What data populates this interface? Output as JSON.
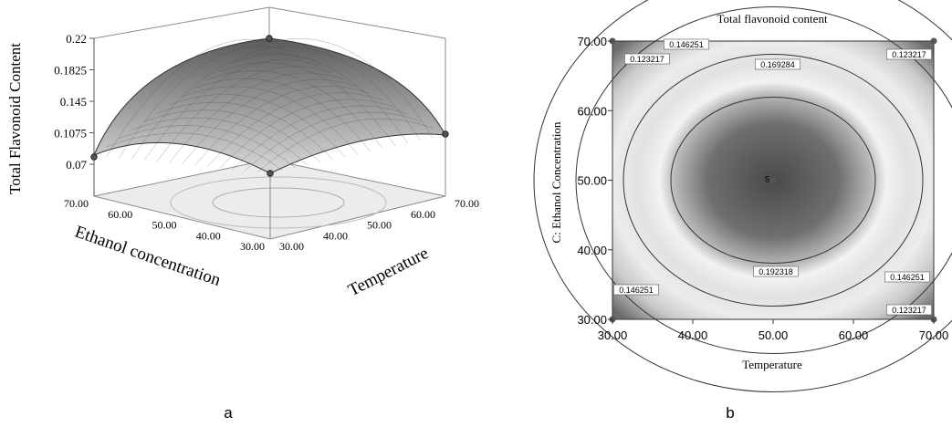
{
  "chart_data": [
    {
      "panel": "a",
      "type": "surface",
      "title": "",
      "xlabel": "Temperature",
      "ylabel": "Ethanol concentration",
      "zlabel": "Total Flavonoid Content",
      "x_ticks": [
        "30.00",
        "40.00",
        "50.00",
        "60.00",
        "70.00"
      ],
      "y_ticks": [
        "30.00",
        "40.00",
        "50.00",
        "60.00",
        "70.00"
      ],
      "z_ticks": [
        "0.07",
        "0.1075",
        "0.145",
        "0.1825",
        "0.22"
      ],
      "xlim": [
        30,
        70
      ],
      "ylim": [
        30,
        70
      ],
      "zlim": [
        0.07,
        0.22
      ],
      "peak": {
        "x": 50,
        "y": 50,
        "z": 0.2
      },
      "design_points": [
        {
          "x": 30,
          "y": 70,
          "z": 0.085
        },
        {
          "x": 70,
          "y": 30,
          "z": 0.088
        },
        {
          "x": 70,
          "y": 70,
          "z": 0.07
        },
        {
          "x": 30,
          "y": 30,
          "z": 0.07
        }
      ]
    },
    {
      "panel": "b",
      "type": "contour",
      "title": "Total flavonoid content",
      "xlabel": "Temperature",
      "ylabel": "C: Ethanol Concentration",
      "x_ticks": [
        "30.00",
        "40.00",
        "50.00",
        "60.00",
        "70.00"
      ],
      "y_ticks": [
        "30.00",
        "40.00",
        "50.00",
        "60.00",
        "70.00"
      ],
      "xlim": [
        30,
        70
      ],
      "ylim": [
        30,
        70
      ],
      "contour_levels": [
        "0.123217",
        "0.146251",
        "0.169284",
        "0.192318"
      ],
      "center_point": {
        "x": 50,
        "y": 50,
        "label": "5"
      },
      "design_points": [
        {
          "x": 30,
          "y": 70
        },
        {
          "x": 70,
          "y": 70
        },
        {
          "x": 30,
          "y": 30
        },
        {
          "x": 70,
          "y": 30
        }
      ]
    }
  ],
  "panel_labels": {
    "a": "a",
    "b": "b"
  }
}
